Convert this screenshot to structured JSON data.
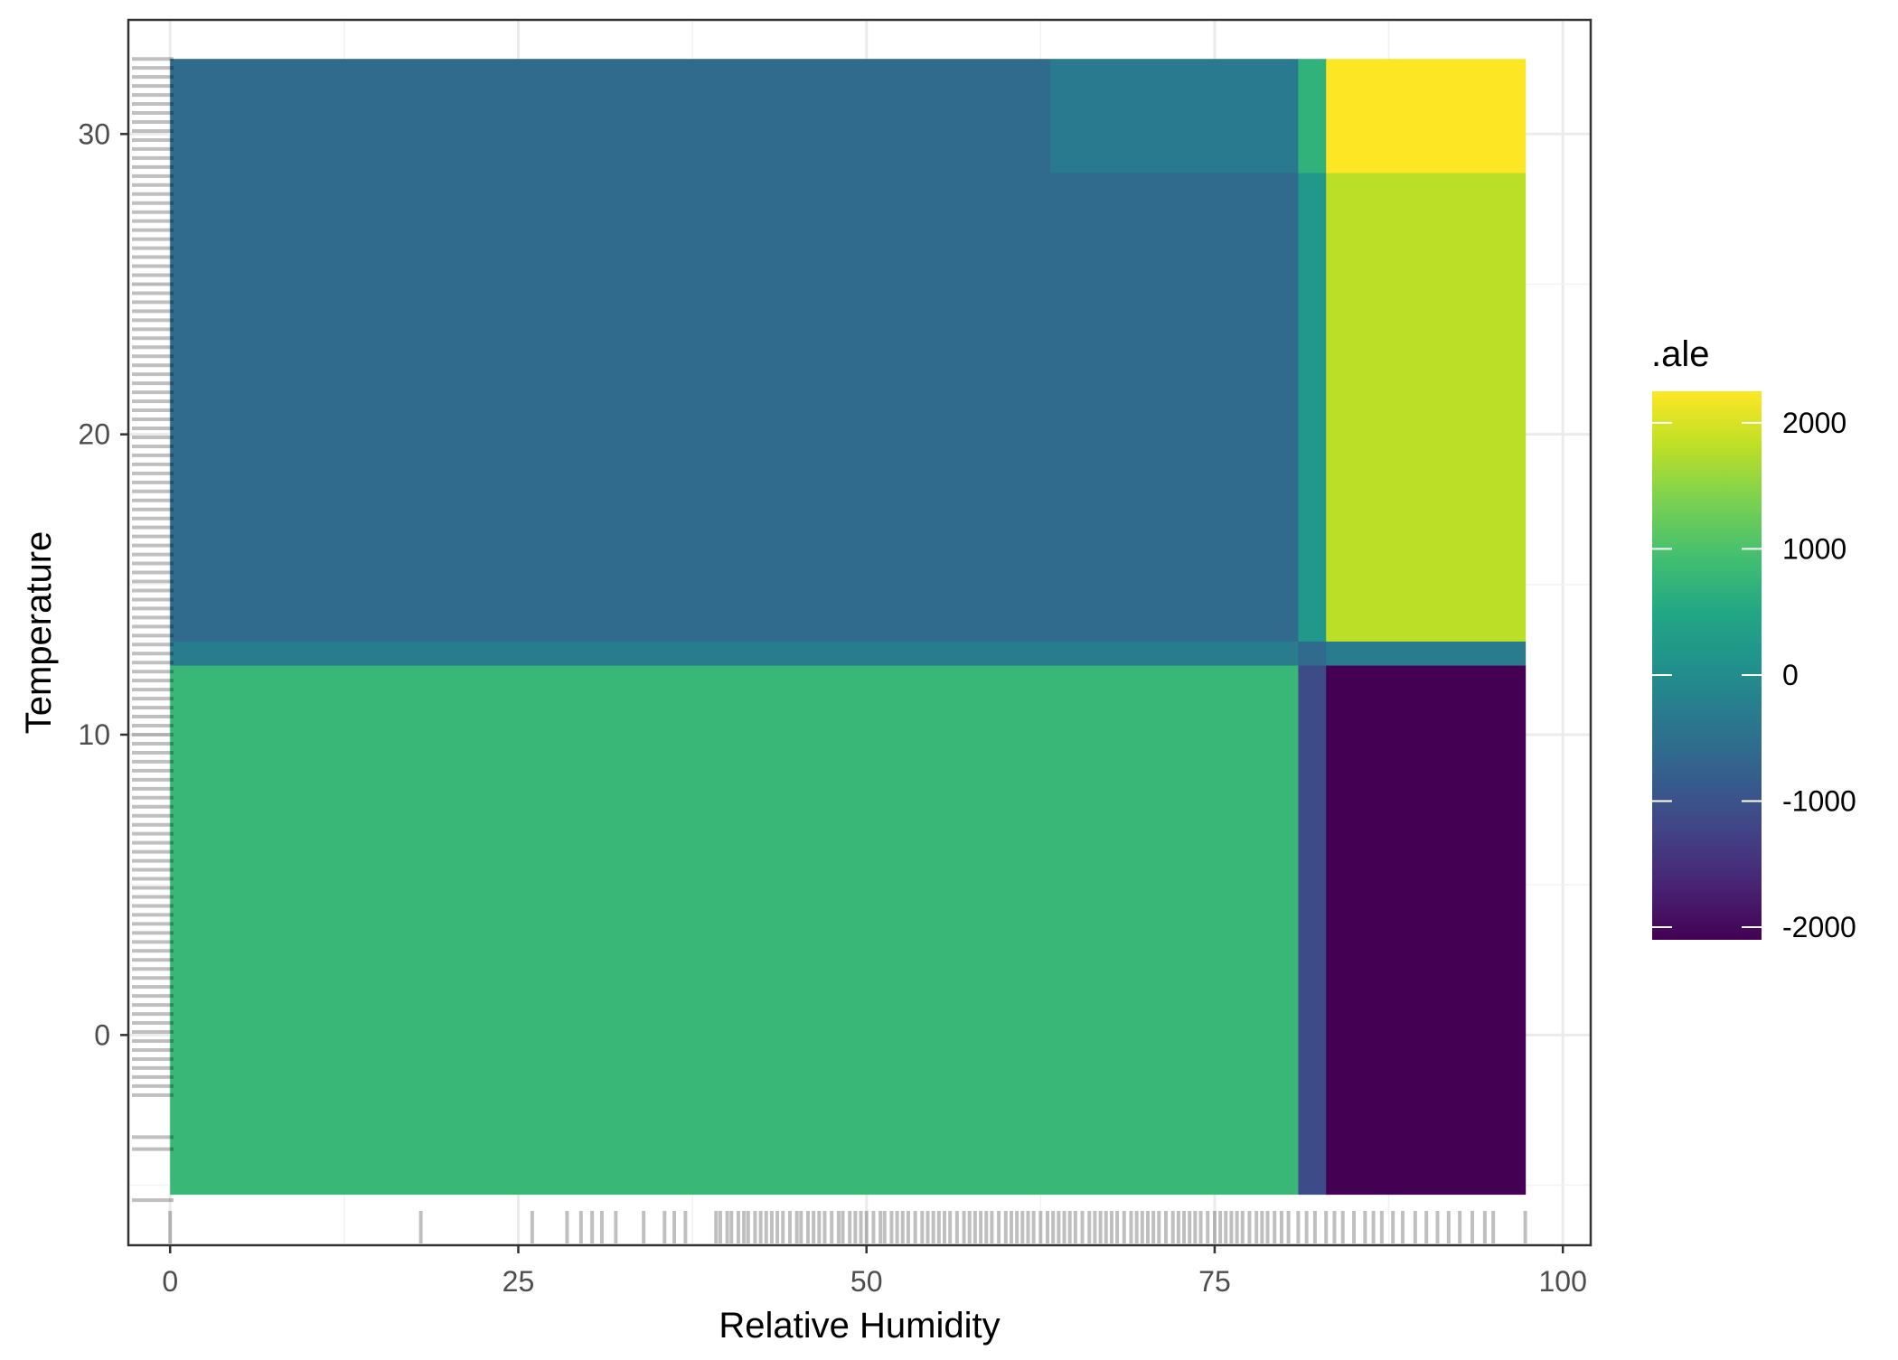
{
  "chart_data": {
    "type": "heatmap",
    "title": "",
    "xlabel": "Relative Humidity",
    "ylabel": "Temperature",
    "xlim": [
      -3,
      102
    ],
    "ylim": [
      -7,
      33.8
    ],
    "x_ticks": [
      0,
      25,
      50,
      75,
      100
    ],
    "y_ticks": [
      0,
      10,
      20,
      30
    ],
    "grid": true,
    "legend_position": "right",
    "colorbar": {
      "title": ".ale",
      "range": [
        -2100,
        2250
      ],
      "ticks": [
        -2000,
        -1000,
        0,
        1000,
        2000
      ],
      "palette": "viridis"
    },
    "tiles": [
      {
        "x0": 0,
        "x1": 63.2,
        "y0": 13.1,
        "y1": 32.5,
        "value": -600
      },
      {
        "x0": 63.2,
        "x1": 81,
        "y0": 28.7,
        "y1": 32.5,
        "value": -320
      },
      {
        "x0": 63.2,
        "x1": 81,
        "y0": 13.1,
        "y1": 28.7,
        "value": -600
      },
      {
        "x0": 81,
        "x1": 83,
        "y0": 28.7,
        "y1": 32.5,
        "value": 700
      },
      {
        "x0": 81,
        "x1": 83,
        "y0": 13.1,
        "y1": 28.7,
        "value": 200
      },
      {
        "x0": 83,
        "x1": 97.3,
        "y0": 28.7,
        "y1": 32.5,
        "value": 2250
      },
      {
        "x0": 83,
        "x1": 97.3,
        "y0": 13.1,
        "y1": 28.7,
        "value": 1800
      },
      {
        "x0": 0,
        "x1": 81,
        "y0": 12.3,
        "y1": 13.1,
        "value": -300
      },
      {
        "x0": 81,
        "x1": 83,
        "y0": 12.3,
        "y1": 13.1,
        "value": -600
      },
      {
        "x0": 83,
        "x1": 97.3,
        "y0": 12.3,
        "y1": 13.1,
        "value": -300
      },
      {
        "x0": 0,
        "x1": 81,
        "y0": -5.3,
        "y1": 12.3,
        "value": 800
      },
      {
        "x0": 81,
        "x1": 83,
        "y0": -5.3,
        "y1": 12.3,
        "value": -1100
      },
      {
        "x0": 83,
        "x1": 97.3,
        "y0": -5.3,
        "y1": 12.3,
        "value": -2100
      }
    ],
    "rug_x": [
      0,
      18,
      26,
      28.5,
      29.5,
      30.3,
      31,
      32,
      34,
      35.5,
      36.2,
      37,
      39.2,
      39.5,
      40,
      40.3,
      40.8,
      41.2,
      41.5,
      42,
      42.4,
      42.8,
      43.2,
      43.6,
      44,
      44.5,
      45,
      45.3,
      45.8,
      46.2,
      46.6,
      47,
      47.5,
      48,
      48.3,
      48.8,
      49.2,
      49.6,
      50,
      50.5,
      51,
      51.3,
      51.8,
      52.2,
      52.6,
      53,
      53.5,
      54,
      54.4,
      54.8,
      55.2,
      55.6,
      56,
      56.5,
      57,
      57.4,
      57.8,
      58.2,
      58.6,
      59,
      59.5,
      60,
      60.4,
      60.8,
      61.2,
      61.6,
      62,
      62.5,
      63,
      63.4,
      63.8,
      64.2,
      64.6,
      65,
      65.5,
      66,
      66.4,
      66.8,
      67.2,
      67.6,
      68,
      68.5,
      69,
      69.4,
      69.8,
      70.2,
      70.6,
      71,
      71.5,
      72,
      72.4,
      72.8,
      73.2,
      73.6,
      74,
      74.5,
      75,
      75.4,
      75.8,
      76.2,
      76.6,
      77,
      77.5,
      78,
      78.4,
      78.8,
      79.3,
      79.8,
      80.3,
      81,
      81.6,
      82.2,
      83,
      83.6,
      84.2,
      85,
      85.8,
      86.4,
      87,
      87.8,
      88.5,
      89.4,
      90.2,
      91,
      91.8,
      92.6,
      93.5,
      94.4,
      95,
      97.3
    ],
    "rug_y": [
      -5.5,
      -3.8,
      -3.4,
      -2,
      -1.7,
      -1.4,
      -1.1,
      -0.8,
      -0.5,
      -0.2,
      0.1,
      0.4,
      0.7,
      1,
      1.3,
      1.6,
      1.9,
      2.2,
      2.5,
      2.8,
      3.1,
      3.4,
      3.7,
      4,
      4.3,
      4.6,
      4.9,
      5.2,
      5.5,
      5.8,
      6.1,
      6.4,
      6.7,
      7,
      7.3,
      7.6,
      7.9,
      8.2,
      8.5,
      8.8,
      9.1,
      9.4,
      9.7,
      10,
      10.3,
      10.6,
      10.9,
      11.2,
      11.5,
      11.8,
      12.1,
      12.4,
      12.7,
      13,
      13.3,
      13.6,
      13.9,
      14.2,
      14.5,
      14.8,
      15.1,
      15.4,
      15.7,
      16,
      16.3,
      16.6,
      16.9,
      17.2,
      17.5,
      17.8,
      18.1,
      18.4,
      18.7,
      19,
      19.3,
      19.6,
      19.9,
      20.2,
      20.5,
      20.8,
      21.1,
      21.4,
      21.7,
      22,
      22.3,
      22.6,
      22.9,
      23.2,
      23.5,
      23.8,
      24.1,
      24.4,
      24.7,
      25,
      25.3,
      25.6,
      25.9,
      26.2,
      26.5,
      26.8,
      27.1,
      27.4,
      27.7,
      28,
      28.3,
      28.6,
      28.9,
      29.2,
      29.5,
      29.8,
      30.1,
      30.4,
      30.7,
      31,
      31.3,
      31.6,
      31.9,
      32.2,
      32.5
    ]
  }
}
